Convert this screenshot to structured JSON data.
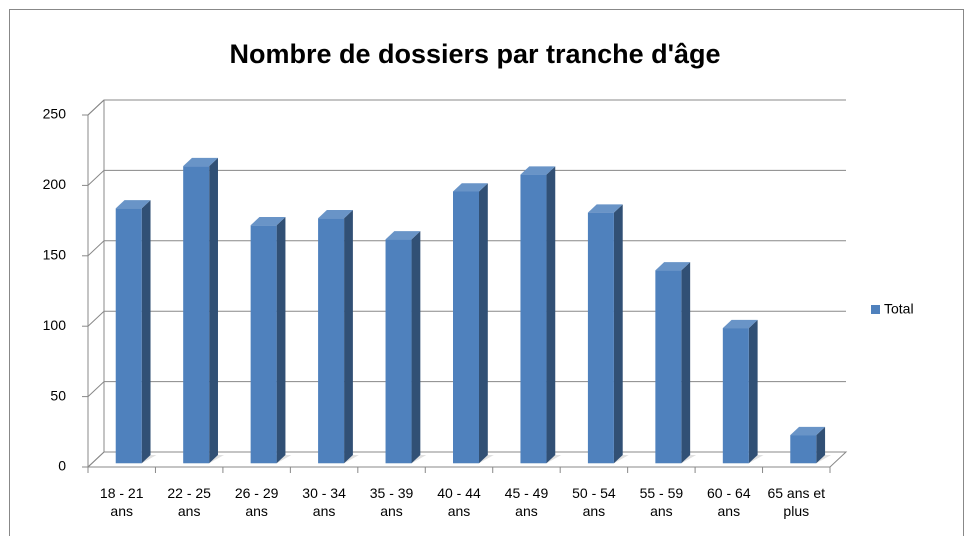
{
  "chart_data": {
    "type": "bar3d",
    "title": "Nombre de dossiers par tranche d'âge",
    "categories": [
      "18 - 21 ans",
      "22 - 25 ans",
      "26 - 29 ans",
      "30 - 34 ans",
      "35 - 39 ans",
      "40 - 44 ans",
      "45 - 49 ans",
      "50 - 54 ans",
      "55 - 59 ans",
      "60 - 64 ans",
      "65 ans et plus"
    ],
    "series": [
      {
        "name": "Total",
        "color": "#4f81bd",
        "values": [
          181,
          211,
          169,
          174,
          159,
          193,
          205,
          178,
          137,
          96,
          20
        ]
      }
    ],
    "ylim": [
      0,
      250
    ],
    "yticks": [
      0,
      50,
      100,
      150,
      200,
      250
    ],
    "grid": true,
    "legend": "right"
  }
}
